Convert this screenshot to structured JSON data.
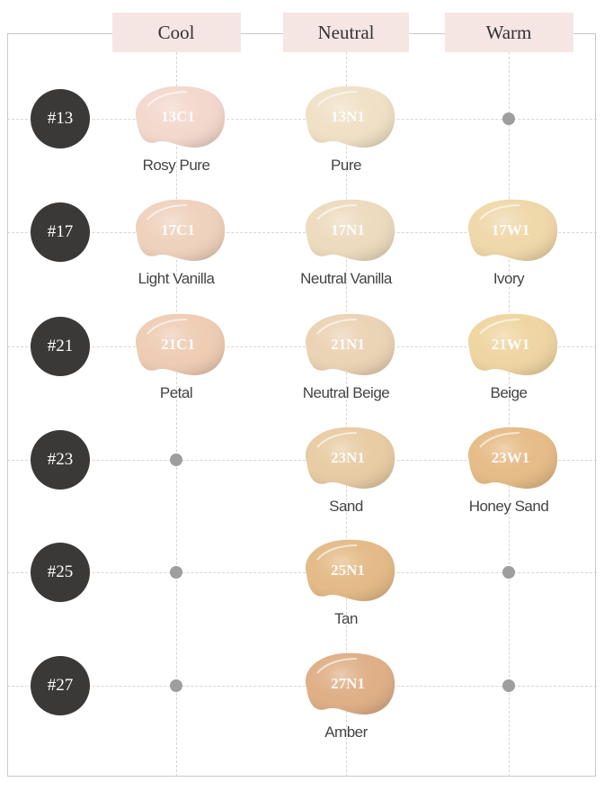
{
  "columns": [
    {
      "label": "Cool"
    },
    {
      "label": "Neutral"
    },
    {
      "label": "Warm"
    }
  ],
  "rows": [
    {
      "label": "#13",
      "cells": [
        {
          "code": "13C1",
          "name": "Rosy Pure",
          "color": "#f3d8cd"
        },
        {
          "code": "13N1",
          "name": "Pure",
          "color": "#f0e1c6"
        },
        null
      ]
    },
    {
      "label": "#17",
      "cells": [
        {
          "code": "17C1",
          "name": "Light Vanilla",
          "color": "#efd2bd"
        },
        {
          "code": "17N1",
          "name": "Neutral Vanilla",
          "color": "#eddbbf"
        },
        {
          "code": "17W1",
          "name": "Ivory",
          "color": "#efd8aa"
        }
      ]
    },
    {
      "label": "#21",
      "cells": [
        {
          "code": "21C1",
          "name": "Petal",
          "color": "#eecdb4"
        },
        {
          "code": "21N1",
          "name": "Neutral Beige",
          "color": "#ebd3b5"
        },
        {
          "code": "21W1",
          "name": "Beige",
          "color": "#efd5a2"
        }
      ]
    },
    {
      "label": "#23",
      "cells": [
        null,
        {
          "code": "23N1",
          "name": "Sand",
          "color": "#e8cca4"
        },
        {
          "code": "23W1",
          "name": "Honey Sand",
          "color": "#e6bc88"
        }
      ]
    },
    {
      "label": "#25",
      "cells": [
        null,
        {
          "code": "25N1",
          "name": "Tan",
          "color": "#e4bb88"
        },
        null
      ]
    },
    {
      "label": "#27",
      "cells": [
        null,
        {
          "code": "27N1",
          "name": "Amber",
          "color": "#dfb088"
        },
        null
      ]
    }
  ]
}
